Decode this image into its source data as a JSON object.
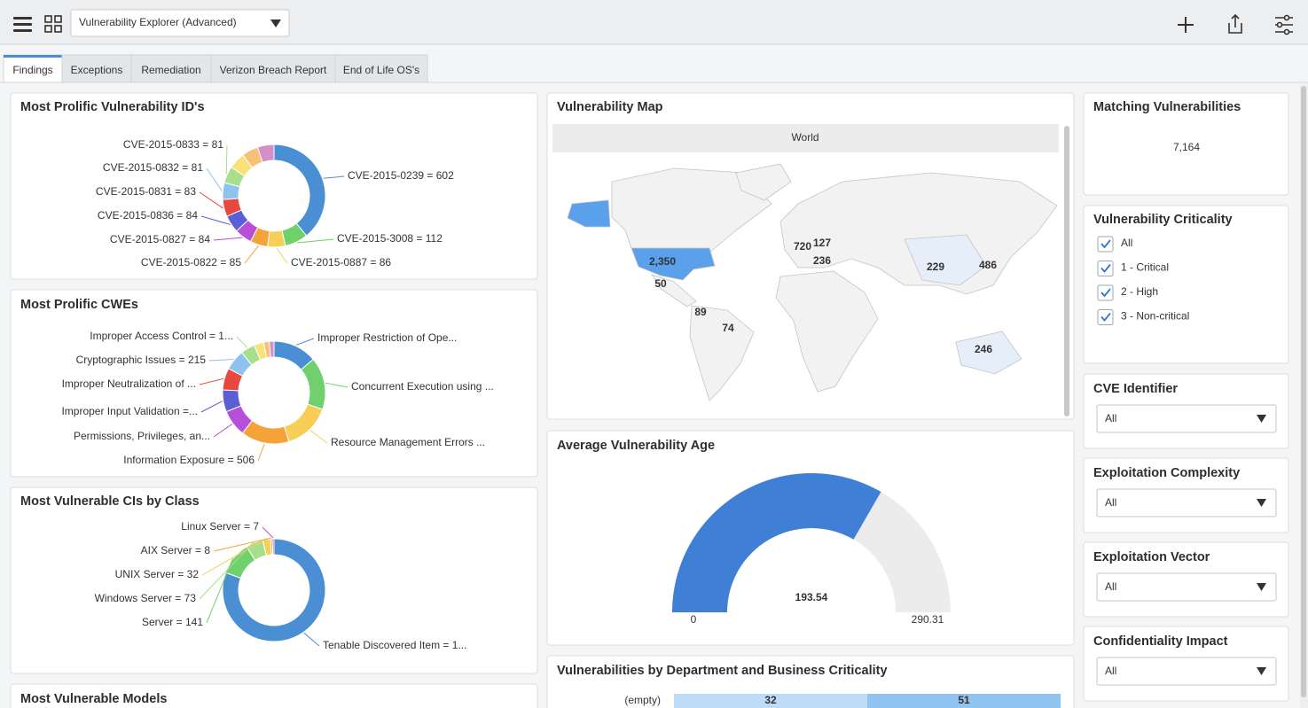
{
  "header": {
    "title": "Vulnerability Explorer (Advanced)"
  },
  "tabs": [
    "Findings",
    "Exceptions",
    "Remediation",
    "Verizon Breach Report",
    "End of Life OS's"
  ],
  "chart_data": [
    {
      "type": "donut",
      "title": "Most Prolific Vulnerability ID's",
      "categories": [
        "CVE-2015-0239 = 602",
        "CVE-2015-3008 = 112",
        "CVE-2015-0887 = 86",
        "CVE-2015-0822 = 85",
        "CVE-2015-0827 = 84",
        "CVE-2015-0836 = 84",
        "CVE-2015-0831 = 83",
        "CVE-2015-0832 = 81",
        "CVE-2015-0833 = 81",
        null,
        null,
        null
      ],
      "values": [
        602,
        112,
        86,
        85,
        84,
        84,
        83,
        81,
        81,
        80,
        80,
        80
      ],
      "colors": [
        "#4a8fd3",
        "#6fd06c",
        "#f7cf56",
        "#f5a238",
        "#b84fd9",
        "#5b5fd6",
        "#e8483d",
        "#8ec2ef",
        "#a8df8a",
        "#f9e27a",
        "#f9c07a",
        "#d48ec8"
      ]
    },
    {
      "type": "donut",
      "title": "Most Prolific CWEs",
      "categories": [
        "Improper Restriction of Ope...",
        "Concurrent Execution using ...",
        "Resource Management Errors ...",
        "Information Exposure = 506",
        "Permissions, Privileges, an...",
        "Improper Input Validation =...",
        "Improper Neutralization of ...",
        "Cryptographic Issues = 215",
        "Improper Access Control = 1...",
        null,
        null,
        null
      ],
      "values": [
        460,
        550,
        500,
        506,
        280,
        230,
        230,
        215,
        150,
        100,
        60,
        50
      ],
      "colors": [
        "#4a8fd3",
        "#6fd06c",
        "#f7cf56",
        "#f5a238",
        "#b84fd9",
        "#5b5fd6",
        "#e8483d",
        "#8ec2ef",
        "#a8df8a",
        "#f9e27a",
        "#f9c07a",
        "#d48ec8"
      ]
    },
    {
      "type": "donut",
      "title": "Most Vulnerable CIs by Class",
      "categories": [
        "Tenable Discovered Item = 1...",
        "Server = 141",
        "Windows Server = 73",
        "UNIX Server = 32",
        "AIX Server = 8",
        "Linux Server = 7"
      ],
      "values": [
        1080,
        141,
        73,
        32,
        8,
        7
      ],
      "colors": [
        "#4a8fd3",
        "#6fd06c",
        "#a8df8a",
        "#f7cf56",
        "#f5a238",
        "#b84fd9"
      ]
    },
    {
      "type": "gauge",
      "title": "Average Vulnerability Age",
      "value": 193.54,
      "min": 0,
      "max": 290.31,
      "colors": [
        "#3f7fd6",
        "#ececec"
      ]
    },
    {
      "type": "none",
      "title": "Most Vulnerable Models"
    }
  ],
  "map": {
    "title": "Vulnerability Map",
    "region_header": "World",
    "labels": [
      "2,350",
      "50",
      "89",
      "74",
      "720",
      "127",
      "236",
      "229",
      "486",
      "246"
    ]
  },
  "department": {
    "title": "Vulnerabilities by Department and Business Criticality",
    "rows": [
      {
        "label": "(empty)",
        "values": [
          32,
          51
        ]
      }
    ],
    "colors": [
      "#bcdcf7",
      "#8fc3f0"
    ]
  },
  "matching": {
    "title": "Matching Vulnerabilities",
    "value": "7,164"
  },
  "criticality": {
    "title": "Vulnerability Criticality",
    "options": [
      "All",
      "1 - Critical",
      "2 - High",
      "3 - Non-critical"
    ]
  },
  "filters": [
    {
      "title": "CVE Identifier",
      "selected": "All"
    },
    {
      "title": "Exploitation Complexity",
      "selected": "All"
    },
    {
      "title": "Exploitation Vector",
      "selected": "All"
    },
    {
      "title": "Confidentiality Impact",
      "selected": "All"
    }
  ]
}
